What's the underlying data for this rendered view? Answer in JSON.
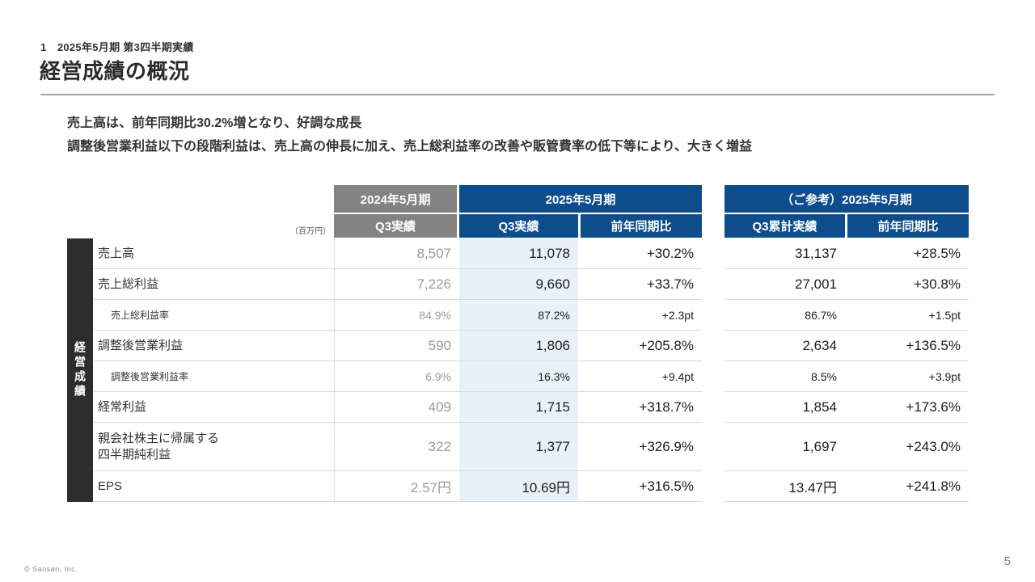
{
  "slide": {
    "kicker": "1　2025年5月期 第3四半期実績",
    "title": "経営成績の概況",
    "bullets": [
      "売上高は、前年同期比30.2%増となり、好調な成長",
      "調整後営業利益以下の段階利益は、売上高の伸長に加え、売上総利益率の改善や販管費率の低下等により、大きく増益"
    ],
    "footer": {
      "copyright": "© Sansan, Inc.",
      "page_number": "5"
    }
  },
  "colors": {
    "navy": "#0d4d8c",
    "gray_header": "#838383",
    "highlight_column": "#e8f1f8",
    "side_bar": "#2d2d2d"
  },
  "table": {
    "unit_note": "（百万円）",
    "side_label": "経営成績",
    "col_groups": [
      {
        "label": "2024年5月期"
      },
      {
        "label": "2025年5月期"
      },
      {
        "label": "（ご参考）2025年5月期"
      }
    ],
    "col_headers": {
      "y2024_q3": "Q3実績",
      "y2025_q3": "Q3実績",
      "y2025_yoy": "前年同期比",
      "cum_q3": "Q3累計実績",
      "cum_yoy": "前年同期比"
    },
    "rows": [
      {
        "label": "売上高",
        "y2024": "8,507",
        "q3": "11,078",
        "yoy": "+30.2%",
        "q3_cum": "31,137",
        "yoy_cum": "+28.5%"
      },
      {
        "label": "売上総利益",
        "y2024": "7,226",
        "q3": "9,660",
        "yoy": "+33.7%",
        "q3_cum": "27,001",
        "yoy_cum": "+30.8%"
      },
      {
        "label": "売上総利益率",
        "y2024": "84.9%",
        "q3": "87.2%",
        "yoy": "+2.3pt",
        "q3_cum": "86.7%",
        "yoy_cum": "+1.5pt"
      },
      {
        "label": "調整後営業利益",
        "y2024": "590",
        "q3": "1,806",
        "yoy": "+205.8%",
        "q3_cum": "2,634",
        "yoy_cum": "+136.5%"
      },
      {
        "label": "調整後営業利益率",
        "y2024": "6.9%",
        "q3": "16.3%",
        "yoy": "+9.4pt",
        "q3_cum": "8.5%",
        "yoy_cum": "+3.9pt"
      },
      {
        "label": "経常利益",
        "y2024": "409",
        "q3": "1,715",
        "yoy": "+318.7%",
        "q3_cum": "1,854",
        "yoy_cum": "+173.6%"
      },
      {
        "label": "親会社株主に帰属する\n四半期純利益",
        "y2024": "322",
        "q3": "1,377",
        "yoy": "+326.9%",
        "q3_cum": "1,697",
        "yoy_cum": "+243.0%"
      },
      {
        "label": "EPS",
        "y2024": "2.57円",
        "q3": "10.69円",
        "yoy": "+316.5%",
        "q3_cum": "13.47円",
        "yoy_cum": "+241.8%"
      }
    ]
  }
}
